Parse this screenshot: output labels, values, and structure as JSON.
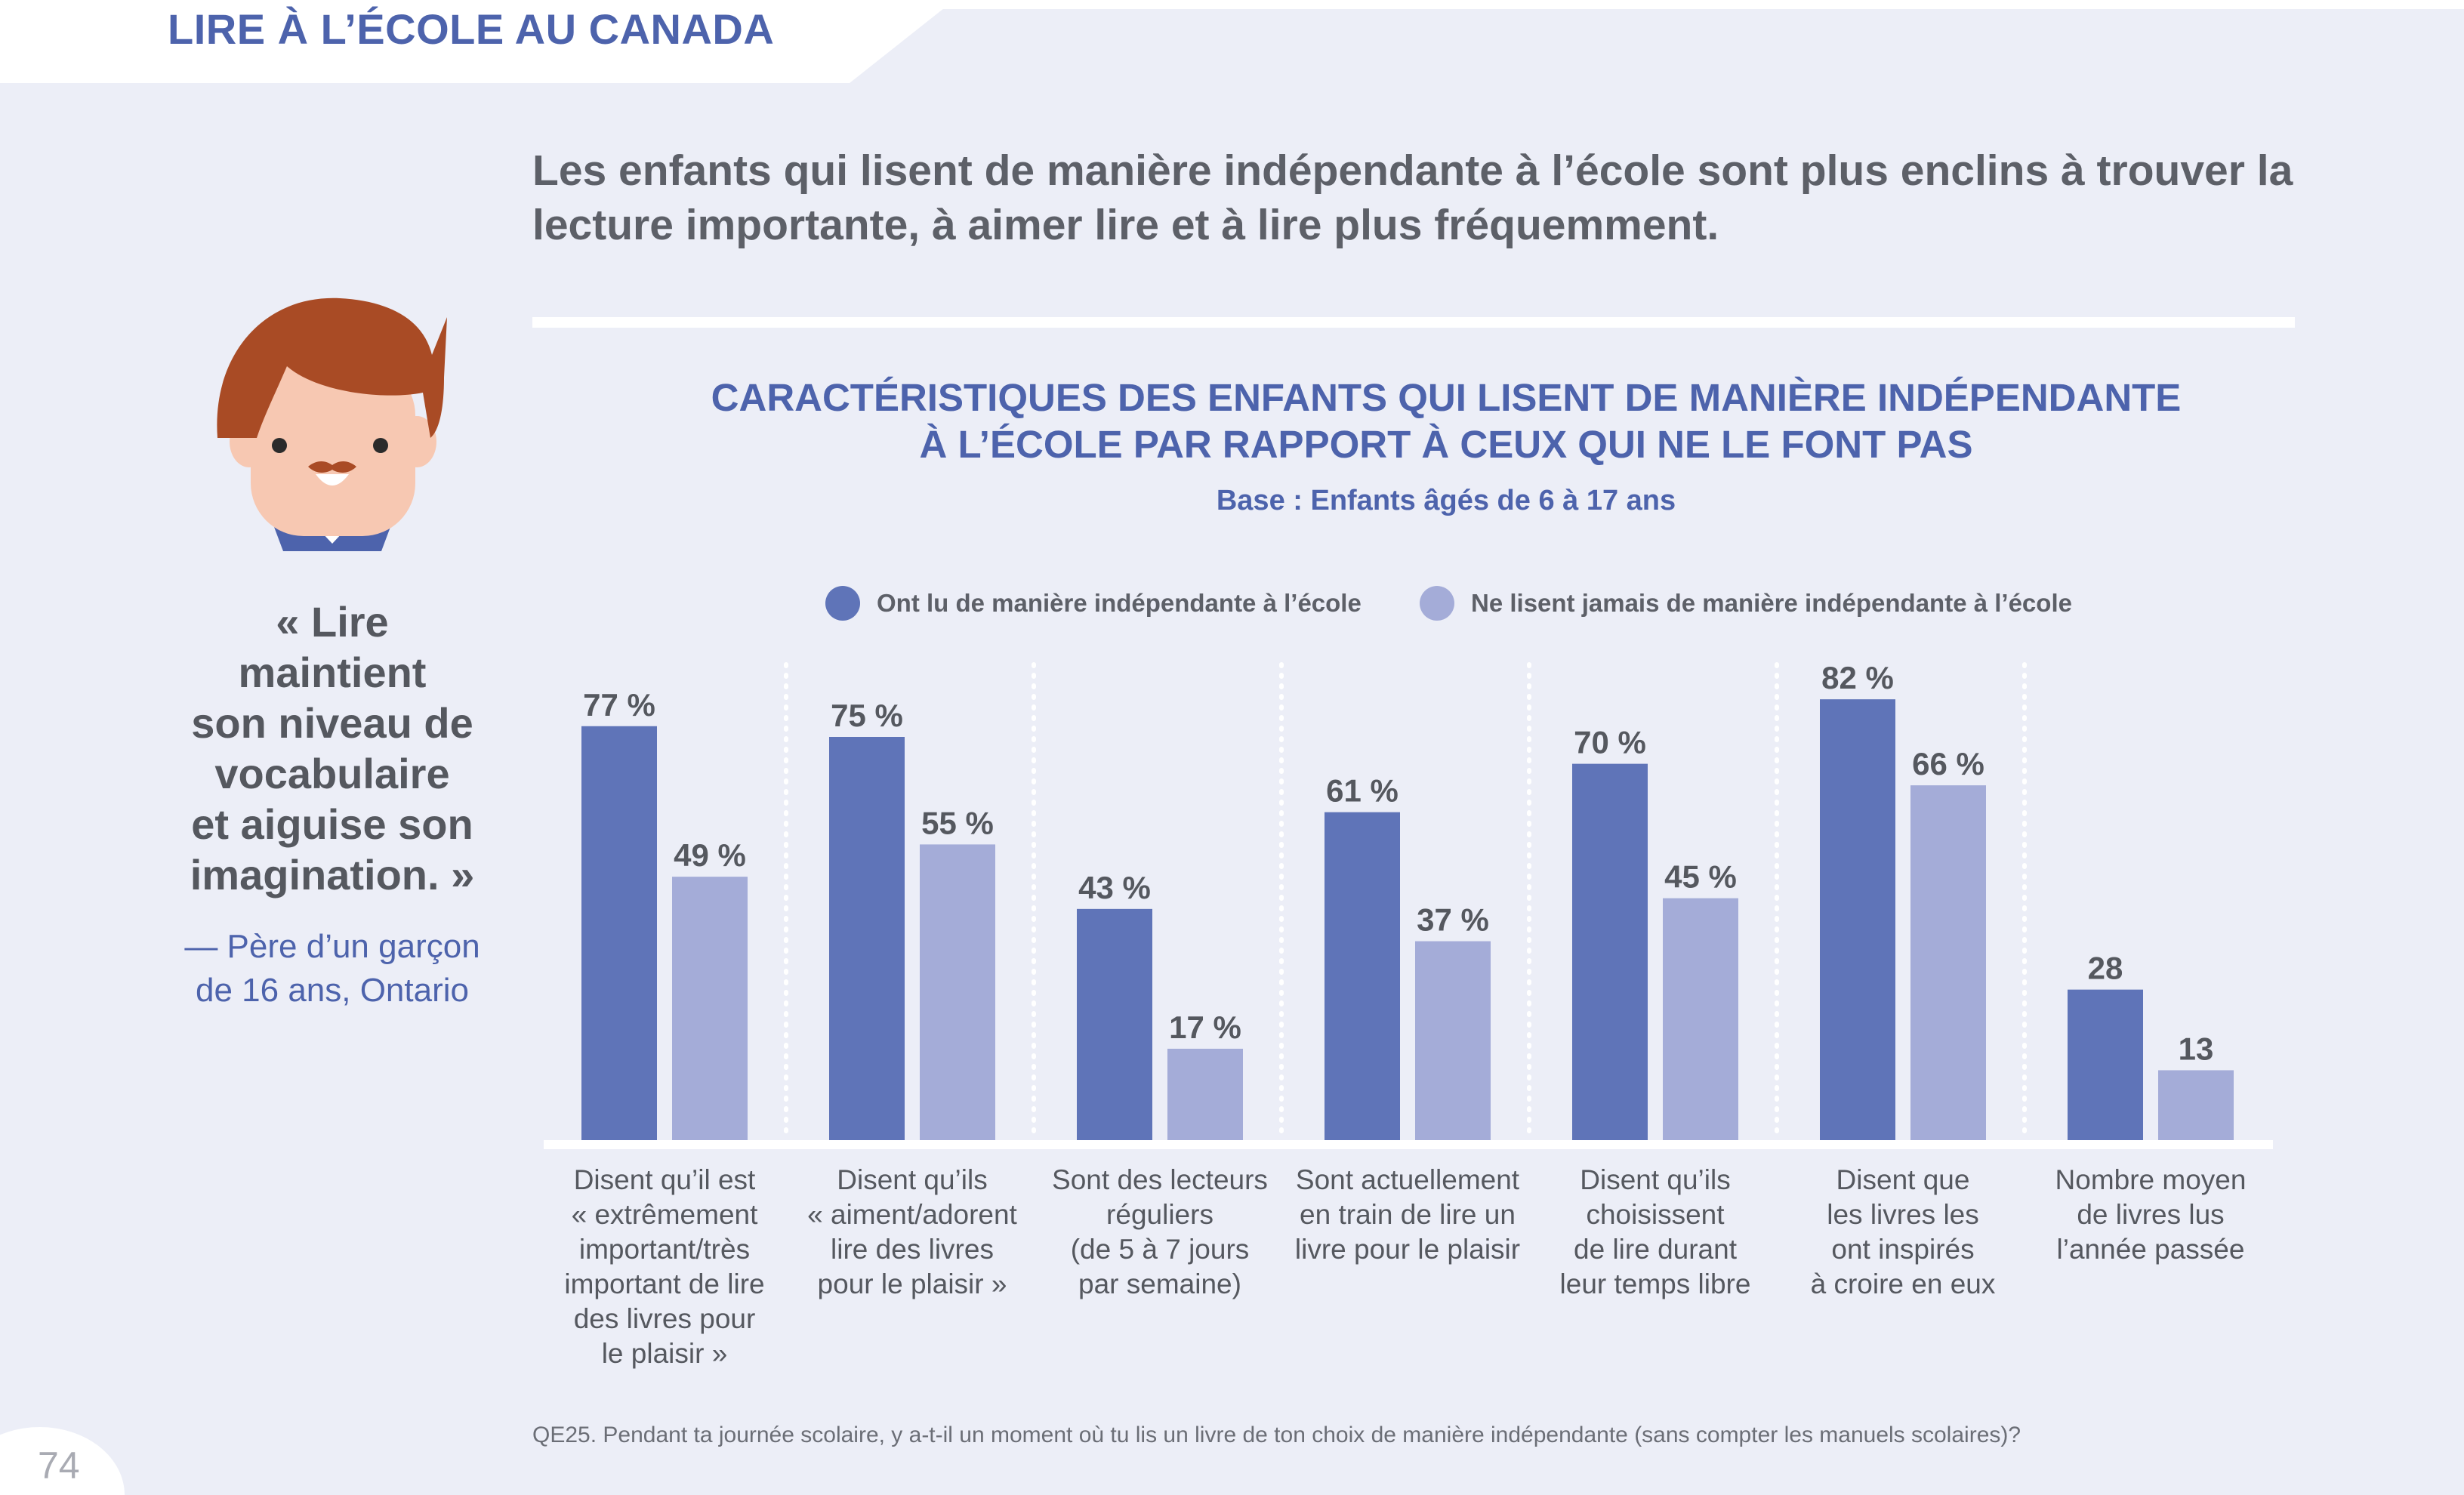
{
  "header": {
    "title": "LIRE À L’ÉCOLE AU CANADA"
  },
  "headline": "Les enfants qui lisent de manière indépendante à l’école sont plus enclins à trouver la lecture importante, à aimer lire et à lire plus fréquemment.",
  "quote": {
    "lines": [
      "« Lire",
      "maintient",
      "son niveau de",
      "vocabulaire",
      "et aiguise son",
      "imagination. »"
    ],
    "attribution_lines": [
      "— Père d’un garçon",
      "de 16 ans, Ontario"
    ]
  },
  "colors": {
    "series_dark": "#5f74b8",
    "series_light": "#a4acd8",
    "accent": "#4d63ac"
  },
  "icons": [
    "boy-avatar-icon"
  ],
  "chart_data": {
    "type": "bar",
    "title_lines": [
      "CARACTÉRISTIQUES DES ENFANTS QUI LISENT DE MANIÈRE INDÉPENDANTE",
      "À L’ÉCOLE PAR RAPPORT À CEUX QUI NE LE FONT PAS"
    ],
    "subtitle": "Base : Enfants âgés de 6 à 17 ans",
    "legend_position": "top",
    "grid": false,
    "ylim": [
      0,
      90
    ],
    "categories": [
      [
        "Disent qu’il est",
        "« extrêmement",
        "important/très",
        "important de lire",
        "des livres pour",
        "le plaisir »"
      ],
      [
        "Disent qu’ils",
        "« aiment/adorent",
        "lire des livres",
        "pour le plaisir »"
      ],
      [
        "Sont des lecteurs",
        "réguliers",
        "(de 5 à 7 jours",
        "par semaine)"
      ],
      [
        "Sont actuellement",
        "en train de lire un",
        "livre pour le plaisir"
      ],
      [
        "Disent qu’ils",
        "choisissent",
        "de lire durant",
        "leur temps libre"
      ],
      [
        "Disent que",
        "les livres les",
        "ont inspirés",
        "à croire en eux"
      ],
      [
        "Nombre moyen",
        "de livres lus",
        "l’année passée"
      ]
    ],
    "series": [
      {
        "name": "Ont lu de manière indépendante à l’école",
        "values": [
          77,
          75,
          43,
          61,
          70,
          82,
          28
        ],
        "labels": [
          "77 %",
          "75 %",
          "43 %",
          "61 %",
          "70 %",
          "82 %",
          "28"
        ]
      },
      {
        "name": "Ne lisent jamais de manière indépendante à l’école",
        "values": [
          49,
          55,
          17,
          37,
          45,
          66,
          13
        ],
        "labels": [
          "49 %",
          "55 %",
          "17 %",
          "37 %",
          "45 %",
          "66 %",
          "13"
        ]
      }
    ]
  },
  "footnote": "QE25. Pendant ta journée scolaire, y a-t-il un moment où tu lis un livre de ton choix de manière indépendante (sans compter les manuels scolaires)?",
  "page_number": "74"
}
